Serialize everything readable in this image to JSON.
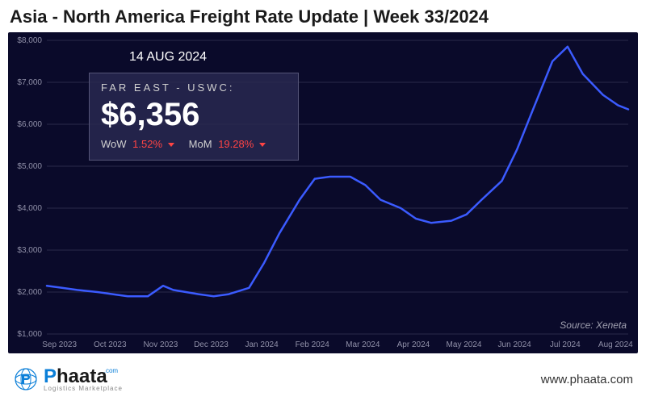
{
  "header": {
    "title": "Asia - North America Freight Rate Update | Week 33/2024"
  },
  "chart": {
    "type": "line",
    "background_color": "#0a0a2a",
    "line_color": "#3b5bff",
    "line_width": 2.5,
    "grid_color": "#2a2a4a",
    "axis_label_color": "#9090a8",
    "axis_label_fontsize": 10,
    "ylim": [
      1000,
      8000
    ],
    "ytick_step": 1000,
    "yticks": [
      "$1,000",
      "$2,000",
      "$3,000",
      "$4,000",
      "$5,000",
      "$6,000",
      "$7,000",
      "$8,000"
    ],
    "xticks": [
      "Sep 2023",
      "Oct 2023",
      "Nov 2023",
      "Dec 2023",
      "Jan 2024",
      "Feb 2024",
      "Mar 2024",
      "Apr 2024",
      "May 2024",
      "Jun 2024",
      "Jul 2024",
      "Aug 2024"
    ],
    "series": [
      {
        "x": 0.0,
        "y": 2150
      },
      {
        "x": 0.3,
        "y": 2100
      },
      {
        "x": 0.6,
        "y": 2050
      },
      {
        "x": 1.0,
        "y": 2000
      },
      {
        "x": 1.3,
        "y": 1950
      },
      {
        "x": 1.6,
        "y": 1900
      },
      {
        "x": 2.0,
        "y": 1900
      },
      {
        "x": 2.3,
        "y": 2150
      },
      {
        "x": 2.5,
        "y": 2050
      },
      {
        "x": 3.0,
        "y": 1950
      },
      {
        "x": 3.3,
        "y": 1900
      },
      {
        "x": 3.6,
        "y": 1950
      },
      {
        "x": 4.0,
        "y": 2100
      },
      {
        "x": 4.3,
        "y": 2700
      },
      {
        "x": 4.6,
        "y": 3400
      },
      {
        "x": 5.0,
        "y": 4200
      },
      {
        "x": 5.3,
        "y": 4700
      },
      {
        "x": 5.6,
        "y": 4750
      },
      {
        "x": 6.0,
        "y": 4750
      },
      {
        "x": 6.3,
        "y": 4550
      },
      {
        "x": 6.6,
        "y": 4200
      },
      {
        "x": 7.0,
        "y": 4000
      },
      {
        "x": 7.3,
        "y": 3750
      },
      {
        "x": 7.6,
        "y": 3650
      },
      {
        "x": 8.0,
        "y": 3700
      },
      {
        "x": 8.3,
        "y": 3850
      },
      {
        "x": 8.6,
        "y": 4200
      },
      {
        "x": 9.0,
        "y": 4650
      },
      {
        "x": 9.3,
        "y": 5400
      },
      {
        "x": 9.6,
        "y": 6300
      },
      {
        "x": 10.0,
        "y": 7500
      },
      {
        "x": 10.3,
        "y": 7850
      },
      {
        "x": 10.6,
        "y": 7200
      },
      {
        "x": 11.0,
        "y": 6700
      },
      {
        "x": 11.3,
        "y": 6450
      },
      {
        "x": 11.5,
        "y": 6356
      }
    ],
    "source": "Source: Xeneta"
  },
  "info": {
    "date": "14 AUG 2024",
    "route": "FAR EAST - USWC:",
    "value": "$6,356",
    "wow_label": "WoW",
    "wow_value": "1.52%",
    "mom_label": "MoM",
    "mom_value": "19.28%",
    "change_color": "#ff4444"
  },
  "footer": {
    "logo_name": "Phaata",
    "logo_suffix": ".com",
    "logo_tagline": "Logistics Marketplace",
    "site_url": "www.phaata.com",
    "logo_blue": "#0b7fd8"
  }
}
